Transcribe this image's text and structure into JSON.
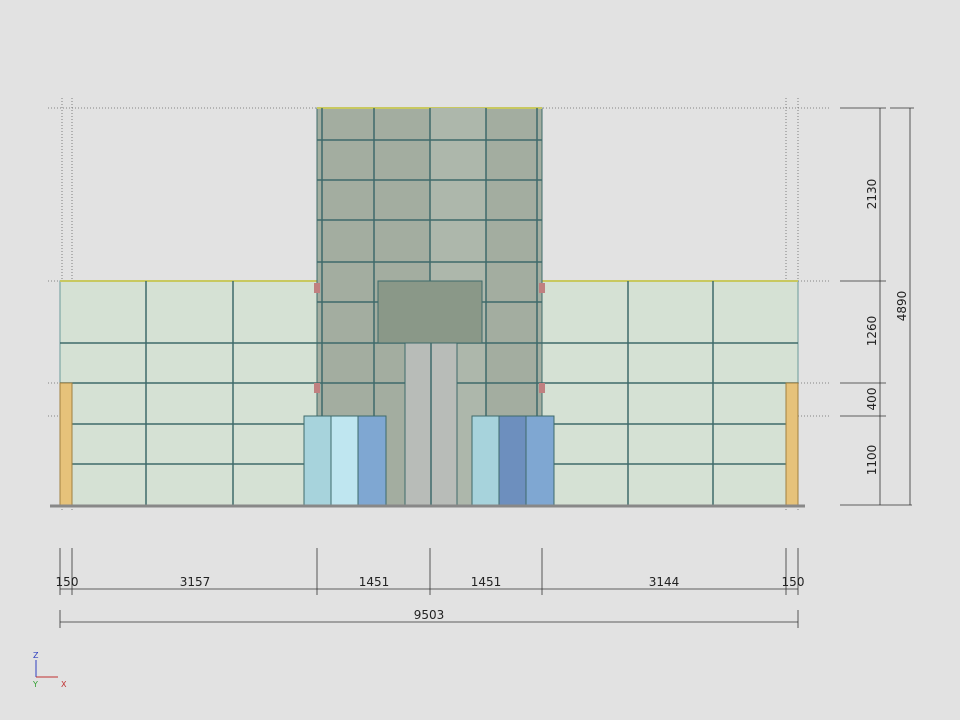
{
  "dimensions": {
    "horizontal": [
      "150",
      "3157",
      "1451",
      "1451",
      "3144",
      "150"
    ],
    "total": "9503",
    "vertical": [
      "2130",
      "1260",
      "400",
      "1100"
    ],
    "height_total": "4890"
  },
  "axes": {
    "z": "Z",
    "y": "Y",
    "x": "X"
  }
}
